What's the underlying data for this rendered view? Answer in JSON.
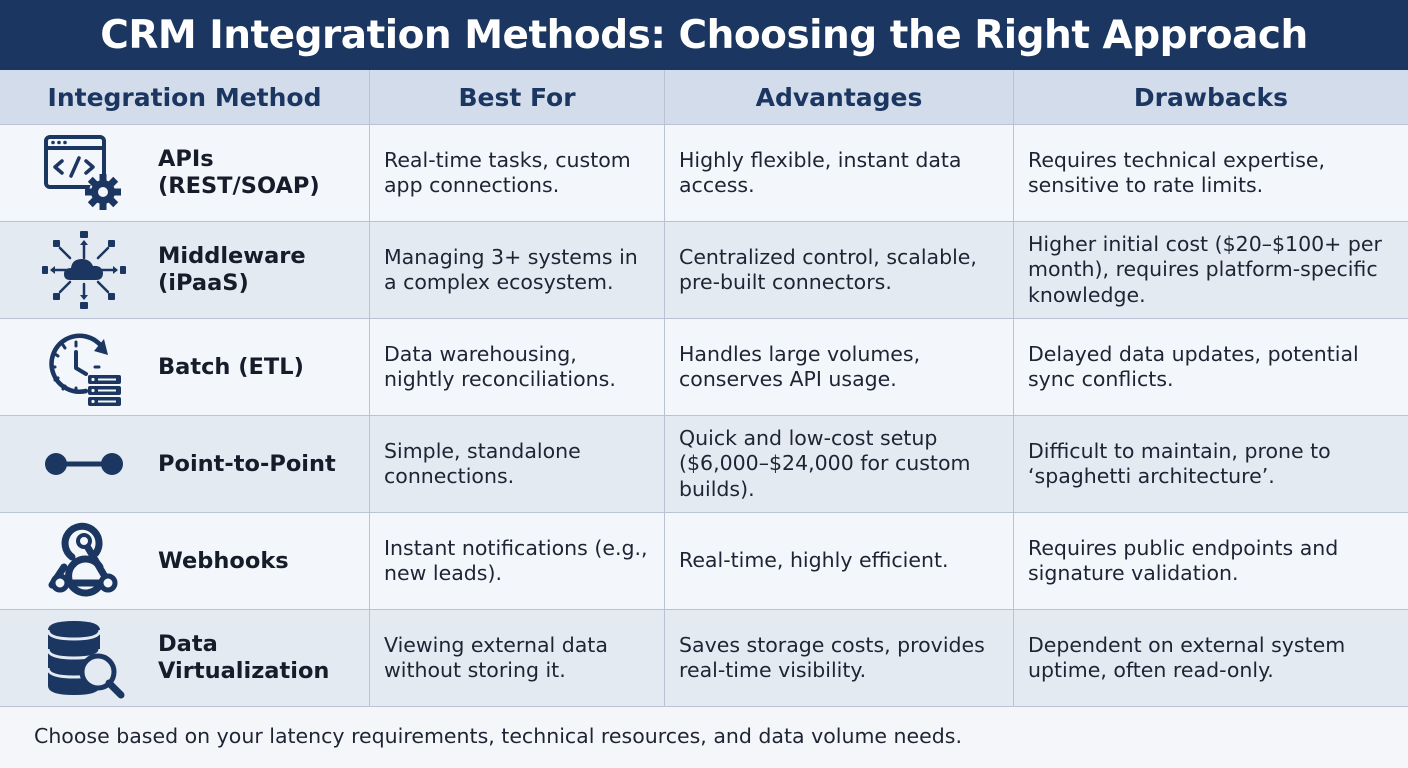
{
  "title": "CRM Integration Methods: Choosing the Right Approach",
  "headers": [
    "Integration Method",
    "Best For",
    "Advantages",
    "Drawbacks"
  ],
  "rows": [
    {
      "icon": "code-window-gear-icon",
      "method": "APIs (REST/SOAP)",
      "best_for": "Real-time tasks, custom app connections.",
      "advantages": "Highly flexible, instant data access.",
      "drawbacks": "Requires technical expertise, sensitive to rate limits."
    },
    {
      "icon": "cloud-network-icon",
      "method": "Middleware (iPaaS)",
      "best_for": "Managing 3+ systems in a complex ecosystem.",
      "advantages": "Centralized control, scalable, pre-built connectors.",
      "drawbacks": "Higher initial cost ($20–$100+ per month), requires platform-specific knowledge."
    },
    {
      "icon": "clock-server-icon",
      "method": "Batch (ETL)",
      "best_for": "Data warehousing, nightly reconciliations.",
      "advantages": "Handles large volumes, conserves API usage.",
      "drawbacks": "Delayed data updates, potential sync conflicts."
    },
    {
      "icon": "point-link-icon",
      "method": "Point-to-Point",
      "best_for": "Simple, standalone connections.",
      "advantages": "Quick and low-cost setup ($6,000–$24,000 for custom builds).",
      "drawbacks": "Difficult to maintain, prone to ‘spaghetti architecture’."
    },
    {
      "icon": "webhook-icon",
      "method": "Webhooks",
      "best_for": "Instant notifications (e.g., new leads).",
      "advantages": "Real-time, highly efficient.",
      "drawbacks": "Requires public endpoints and signature validation."
    },
    {
      "icon": "database-search-icon",
      "method": "Data Virtualization",
      "best_for": "Viewing external data without storing it.",
      "advantages": "Saves storage costs, provides real-time visibility.",
      "drawbacks": "Dependent on external system uptime, often read-only."
    }
  ],
  "footer": "Choose based on your latency requirements, technical resources, and data volume needs.",
  "colors": {
    "navy": "#1b3660",
    "header_bg": "#d3dcea",
    "row_light": "#f3f6fa",
    "row_dark": "#e4eaf2"
  }
}
